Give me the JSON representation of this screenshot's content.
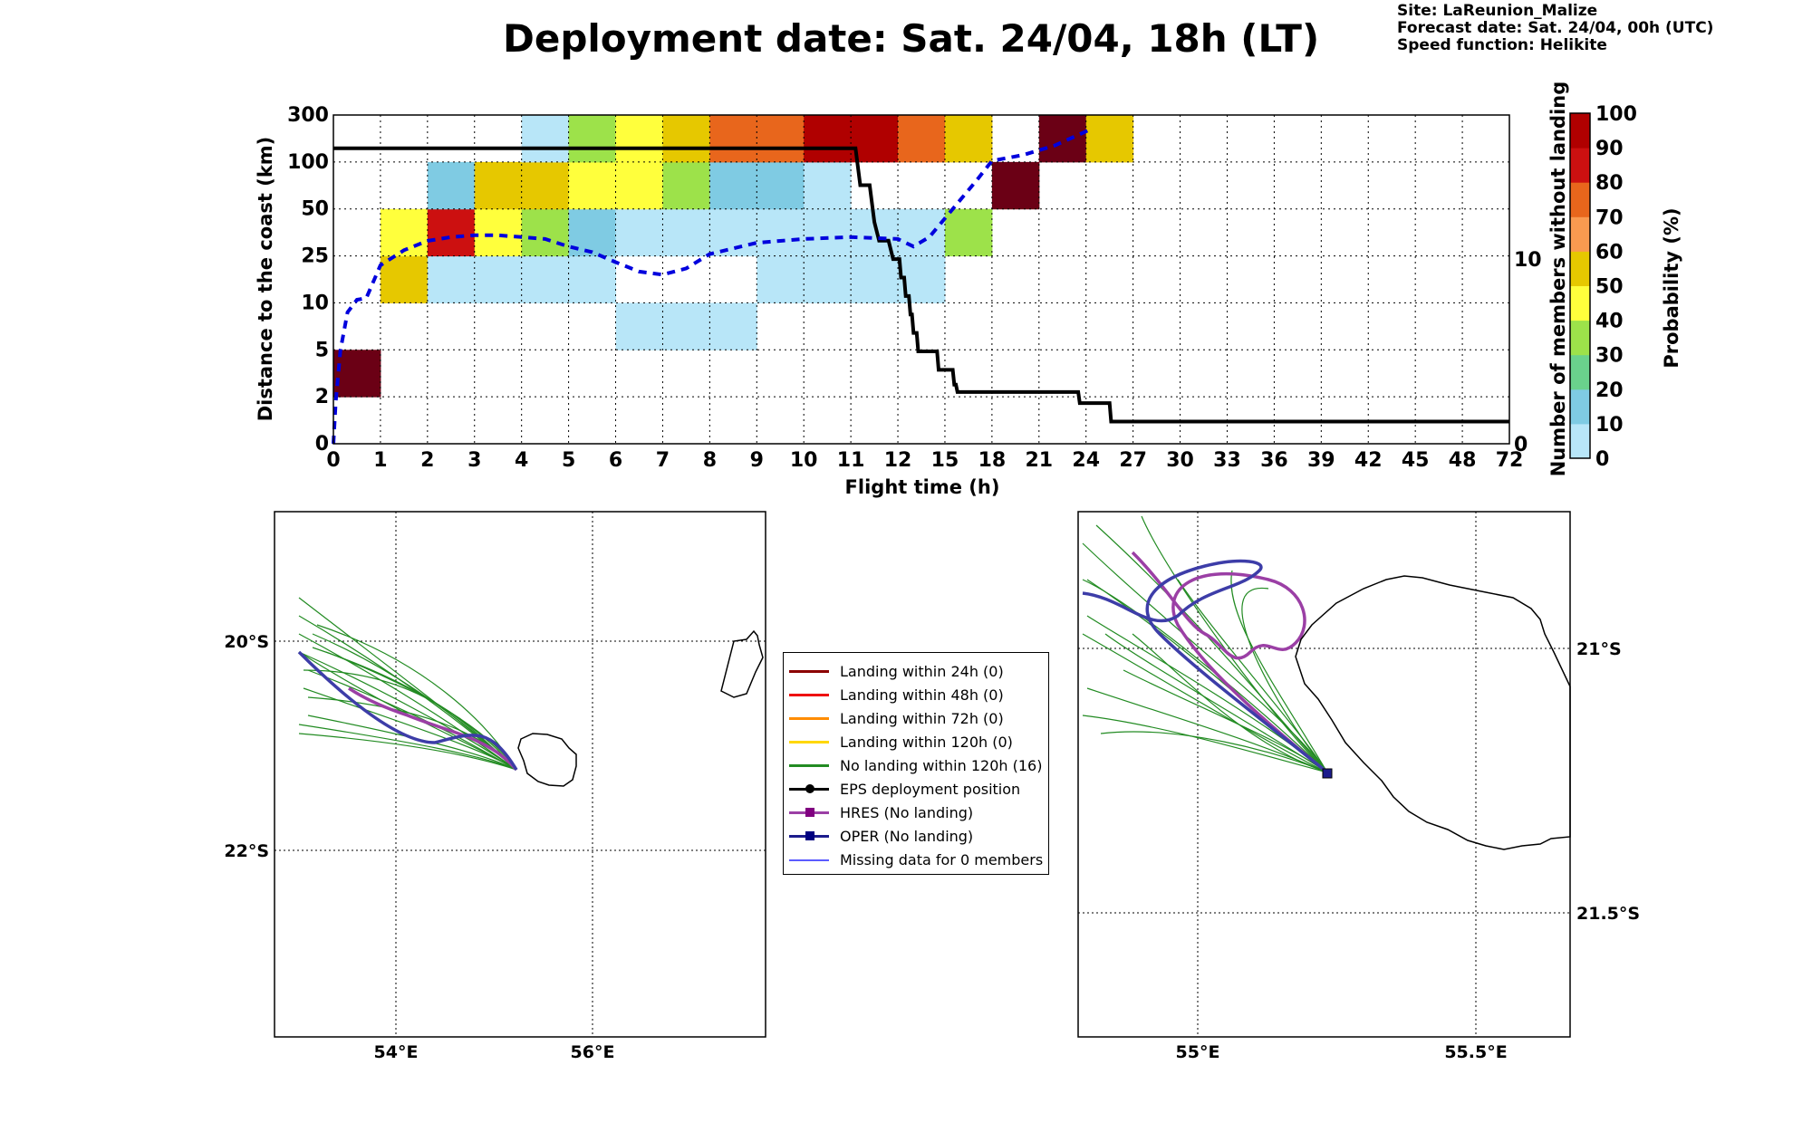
{
  "title": "Deployment date: Sat. 24/04, 18h (LT)",
  "info": {
    "site": "Site: LaReunion_Malize",
    "forecast": "Forecast date: Sat. 24/04, 00h (UTC)",
    "speed": "Speed function: Helikite"
  },
  "colors": {
    "p0": "#b8e6f8",
    "p10": "#7fcbe3",
    "p20": "#6ad28c",
    "p30": "#9de24a",
    "p40": "#ffff3c",
    "p50": "#e6c800",
    "p60": "#f99a50",
    "p70": "#e8661c",
    "p80": "#cc1010",
    "p90": "#b00000",
    "p100": "#6b0015",
    "black_line": "#000000",
    "median_line": "#0000dd"
  },
  "chart_data": [
    {
      "type": "heatmap",
      "title": "",
      "xlabel": "Flight time (h)",
      "ylabel": "Distance to the coast (km)",
      "y2label": "Number of members without landing",
      "x_ticks": [
        "0",
        "1",
        "2",
        "3",
        "4",
        "5",
        "6",
        "7",
        "8",
        "9",
        "10",
        "11",
        "12",
        "15",
        "18",
        "21",
        "24",
        "27",
        "30",
        "33",
        "36",
        "39",
        "42",
        "45",
        "48",
        "72"
      ],
      "y_ticks": [
        "0",
        "2",
        "5",
        "10",
        "25",
        "50",
        "100",
        "300"
      ],
      "y2_ticks": [
        "0",
        "10"
      ],
      "grid": true,
      "colorbar": {
        "label": "Probability (%)",
        "ticks": [
          "0",
          "10",
          "20",
          "30",
          "40",
          "50",
          "60",
          "70",
          "80",
          "90",
          "100"
        ]
      },
      "cells": [
        {
          "x": 0,
          "y": 1,
          "p": 100
        },
        {
          "x": 1,
          "y": 3,
          "p": 50
        },
        {
          "x": 1,
          "y": 4,
          "p": 40
        },
        {
          "x": 2,
          "y": 3,
          "p": 0
        },
        {
          "x": 2,
          "y": 4,
          "p": 80
        },
        {
          "x": 2,
          "y": 5,
          "p": 10
        },
        {
          "x": 3,
          "y": 3,
          "p": 0
        },
        {
          "x": 3,
          "y": 4,
          "p": 40
        },
        {
          "x": 3,
          "y": 5,
          "p": 50
        },
        {
          "x": 4,
          "y": 3,
          "p": 0
        },
        {
          "x": 4,
          "y": 4,
          "p": 30
        },
        {
          "x": 4,
          "y": 5,
          "p": 50
        },
        {
          "x": 4,
          "y": 6,
          "p": 0
        },
        {
          "x": 5,
          "y": 3,
          "p": 0
        },
        {
          "x": 5,
          "y": 4,
          "p": 10
        },
        {
          "x": 5,
          "y": 5,
          "p": 40
        },
        {
          "x": 5,
          "y": 6,
          "p": 30
        },
        {
          "x": 6,
          "y": 2,
          "p": 0
        },
        {
          "x": 6,
          "y": 4,
          "p": 0
        },
        {
          "x": 6,
          "y": 5,
          "p": 40
        },
        {
          "x": 6,
          "y": 6,
          "p": 40
        },
        {
          "x": 7,
          "y": 2,
          "p": 0
        },
        {
          "x": 7,
          "y": 4,
          "p": 0
        },
        {
          "x": 7,
          "y": 5,
          "p": 30
        },
        {
          "x": 7,
          "y": 6,
          "p": 50
        },
        {
          "x": 8,
          "y": 2,
          "p": 0
        },
        {
          "x": 8,
          "y": 4,
          "p": 0
        },
        {
          "x": 8,
          "y": 5,
          "p": 10
        },
        {
          "x": 8,
          "y": 6,
          "p": 70
        },
        {
          "x": 9,
          "y": 3,
          "p": 0
        },
        {
          "x": 9,
          "y": 4,
          "p": 0
        },
        {
          "x": 9,
          "y": 5,
          "p": 10
        },
        {
          "x": 9,
          "y": 6,
          "p": 70
        },
        {
          "x": 10,
          "y": 3,
          "p": 0
        },
        {
          "x": 10,
          "y": 4,
          "p": 0
        },
        {
          "x": 10,
          "y": 5,
          "p": 0
        },
        {
          "x": 10,
          "y": 6,
          "p": 90
        },
        {
          "x": 11,
          "y": 3,
          "p": 0
        },
        {
          "x": 11,
          "y": 4,
          "p": 0
        },
        {
          "x": 11,
          "y": 6,
          "p": 90
        },
        {
          "x": 12,
          "y": 3,
          "p": 0
        },
        {
          "x": 12,
          "y": 4,
          "p": 0
        },
        {
          "x": 12,
          "y": 6,
          "p": 70
        },
        {
          "x": 13,
          "y": 4,
          "p": 30
        },
        {
          "x": 13,
          "y": 6,
          "p": 50
        },
        {
          "x": 14,
          "y": 5,
          "p": 100
        },
        {
          "x": 15,
          "y": 6,
          "p": 100
        },
        {
          "x": 16,
          "y": 6,
          "p": 50
        }
      ],
      "members_without_landing": [
        {
          "t": 0,
          "n": 16
        },
        {
          "t": 11.1,
          "n": 16
        },
        {
          "t": 11.2,
          "n": 14
        },
        {
          "t": 11.4,
          "n": 14
        },
        {
          "t": 11.5,
          "n": 12
        },
        {
          "t": 11.6,
          "n": 11
        },
        {
          "t": 11.8,
          "n": 11
        },
        {
          "t": 11.9,
          "n": 10
        },
        {
          "t": 12.1,
          "n": 10
        },
        {
          "t": 12.2,
          "n": 9
        },
        {
          "t": 12.4,
          "n": 9
        },
        {
          "t": 12.5,
          "n": 8
        },
        {
          "t": 12.7,
          "n": 8
        },
        {
          "t": 12.8,
          "n": 7
        },
        {
          "t": 12.9,
          "n": 7
        },
        {
          "t": 13.0,
          "n": 6
        },
        {
          "t": 13.2,
          "n": 6
        },
        {
          "t": 13.3,
          "n": 5
        },
        {
          "t": 14.5,
          "n": 5
        },
        {
          "t": 14.6,
          "n": 4
        },
        {
          "t": 15.5,
          "n": 4
        },
        {
          "t": 15.6,
          "n": 3.2
        },
        {
          "t": 15.7,
          "n": 3.2
        },
        {
          "t": 15.8,
          "n": 2.8
        },
        {
          "t": 23.5,
          "n": 2.8
        },
        {
          "t": 23.6,
          "n": 2.2
        },
        {
          "t": 25.5,
          "n": 2.2
        },
        {
          "t": 25.6,
          "n": 1.2
        },
        {
          "t": 72,
          "n": 1.2
        }
      ],
      "median_distance_km": [
        {
          "t": 0,
          "d": 0
        },
        {
          "t": 0.05,
          "d": 1.8
        },
        {
          "t": 0.15,
          "d": 5
        },
        {
          "t": 0.3,
          "d": 9
        },
        {
          "t": 0.5,
          "d": 11
        },
        {
          "t": 0.7,
          "d": 11.5
        },
        {
          "t": 1.0,
          "d": 22
        },
        {
          "t": 1.5,
          "d": 28
        },
        {
          "t": 2.0,
          "d": 33
        },
        {
          "t": 2.5,
          "d": 35
        },
        {
          "t": 3.0,
          "d": 36
        },
        {
          "t": 3.5,
          "d": 36
        },
        {
          "t": 4.0,
          "d": 35
        },
        {
          "t": 4.5,
          "d": 34
        },
        {
          "t": 5.0,
          "d": 30
        },
        {
          "t": 5.5,
          "d": 27
        },
        {
          "t": 6.0,
          "d": 23
        },
        {
          "t": 6.5,
          "d": 20
        },
        {
          "t": 7.0,
          "d": 19
        },
        {
          "t": 7.5,
          "d": 21
        },
        {
          "t": 8.0,
          "d": 26
        },
        {
          "t": 8.5,
          "d": 29
        },
        {
          "t": 9.0,
          "d": 32
        },
        {
          "t": 9.5,
          "d": 33
        },
        {
          "t": 10.0,
          "d": 34
        },
        {
          "t": 11.0,
          "d": 35
        },
        {
          "t": 12.0,
          "d": 34
        },
        {
          "t": 13.0,
          "d": 30
        },
        {
          "t": 14.0,
          "d": 35
        },
        {
          "t": 15.0,
          "d": 45
        },
        {
          "t": 16.0,
          "d": 60
        },
        {
          "t": 17.0,
          "d": 80
        },
        {
          "t": 18.0,
          "d": 105
        },
        {
          "t": 20.0,
          "d": 130
        },
        {
          "t": 22.0,
          "d": 170
        },
        {
          "t": 24.0,
          "d": 230
        },
        {
          "t": 24.3,
          "d": 240
        }
      ]
    },
    {
      "type": "map",
      "title": "",
      "lon_ticks": [
        "54°E",
        "56°E"
      ],
      "lat_ticks": [
        "20°S",
        "22°S"
      ]
    },
    {
      "type": "map",
      "title": "",
      "lon_ticks": [
        "55°E",
        "55.5°E"
      ],
      "lat_ticks": [
        "21°S",
        "21.5°S"
      ]
    }
  ],
  "legend": [
    {
      "label": "Landing within 24h (0)",
      "color": "#8b0000",
      "marker": "none"
    },
    {
      "label": "Landing within 48h (0)",
      "color": "#ee1111",
      "marker": "none"
    },
    {
      "label": "Landing within 72h (0)",
      "color": "#ff8c00",
      "marker": "none"
    },
    {
      "label": "Landing within 120h (0)",
      "color": "#ffd700",
      "marker": "none"
    },
    {
      "label": "No landing within 120h (16)",
      "color": "#228b22",
      "marker": "none"
    },
    {
      "label": "EPS deployment position",
      "color": "#000000",
      "marker": "circle"
    },
    {
      "label": "HRES (No landing)",
      "color": "#9b3fa5",
      "marker": "square-purple"
    },
    {
      "label": "OPER (No landing)",
      "color": "#1c1c8c",
      "marker": "square-navy"
    },
    {
      "label": "Missing data for 0 members",
      "color": "#5b5bff",
      "marker": "thin"
    }
  ]
}
